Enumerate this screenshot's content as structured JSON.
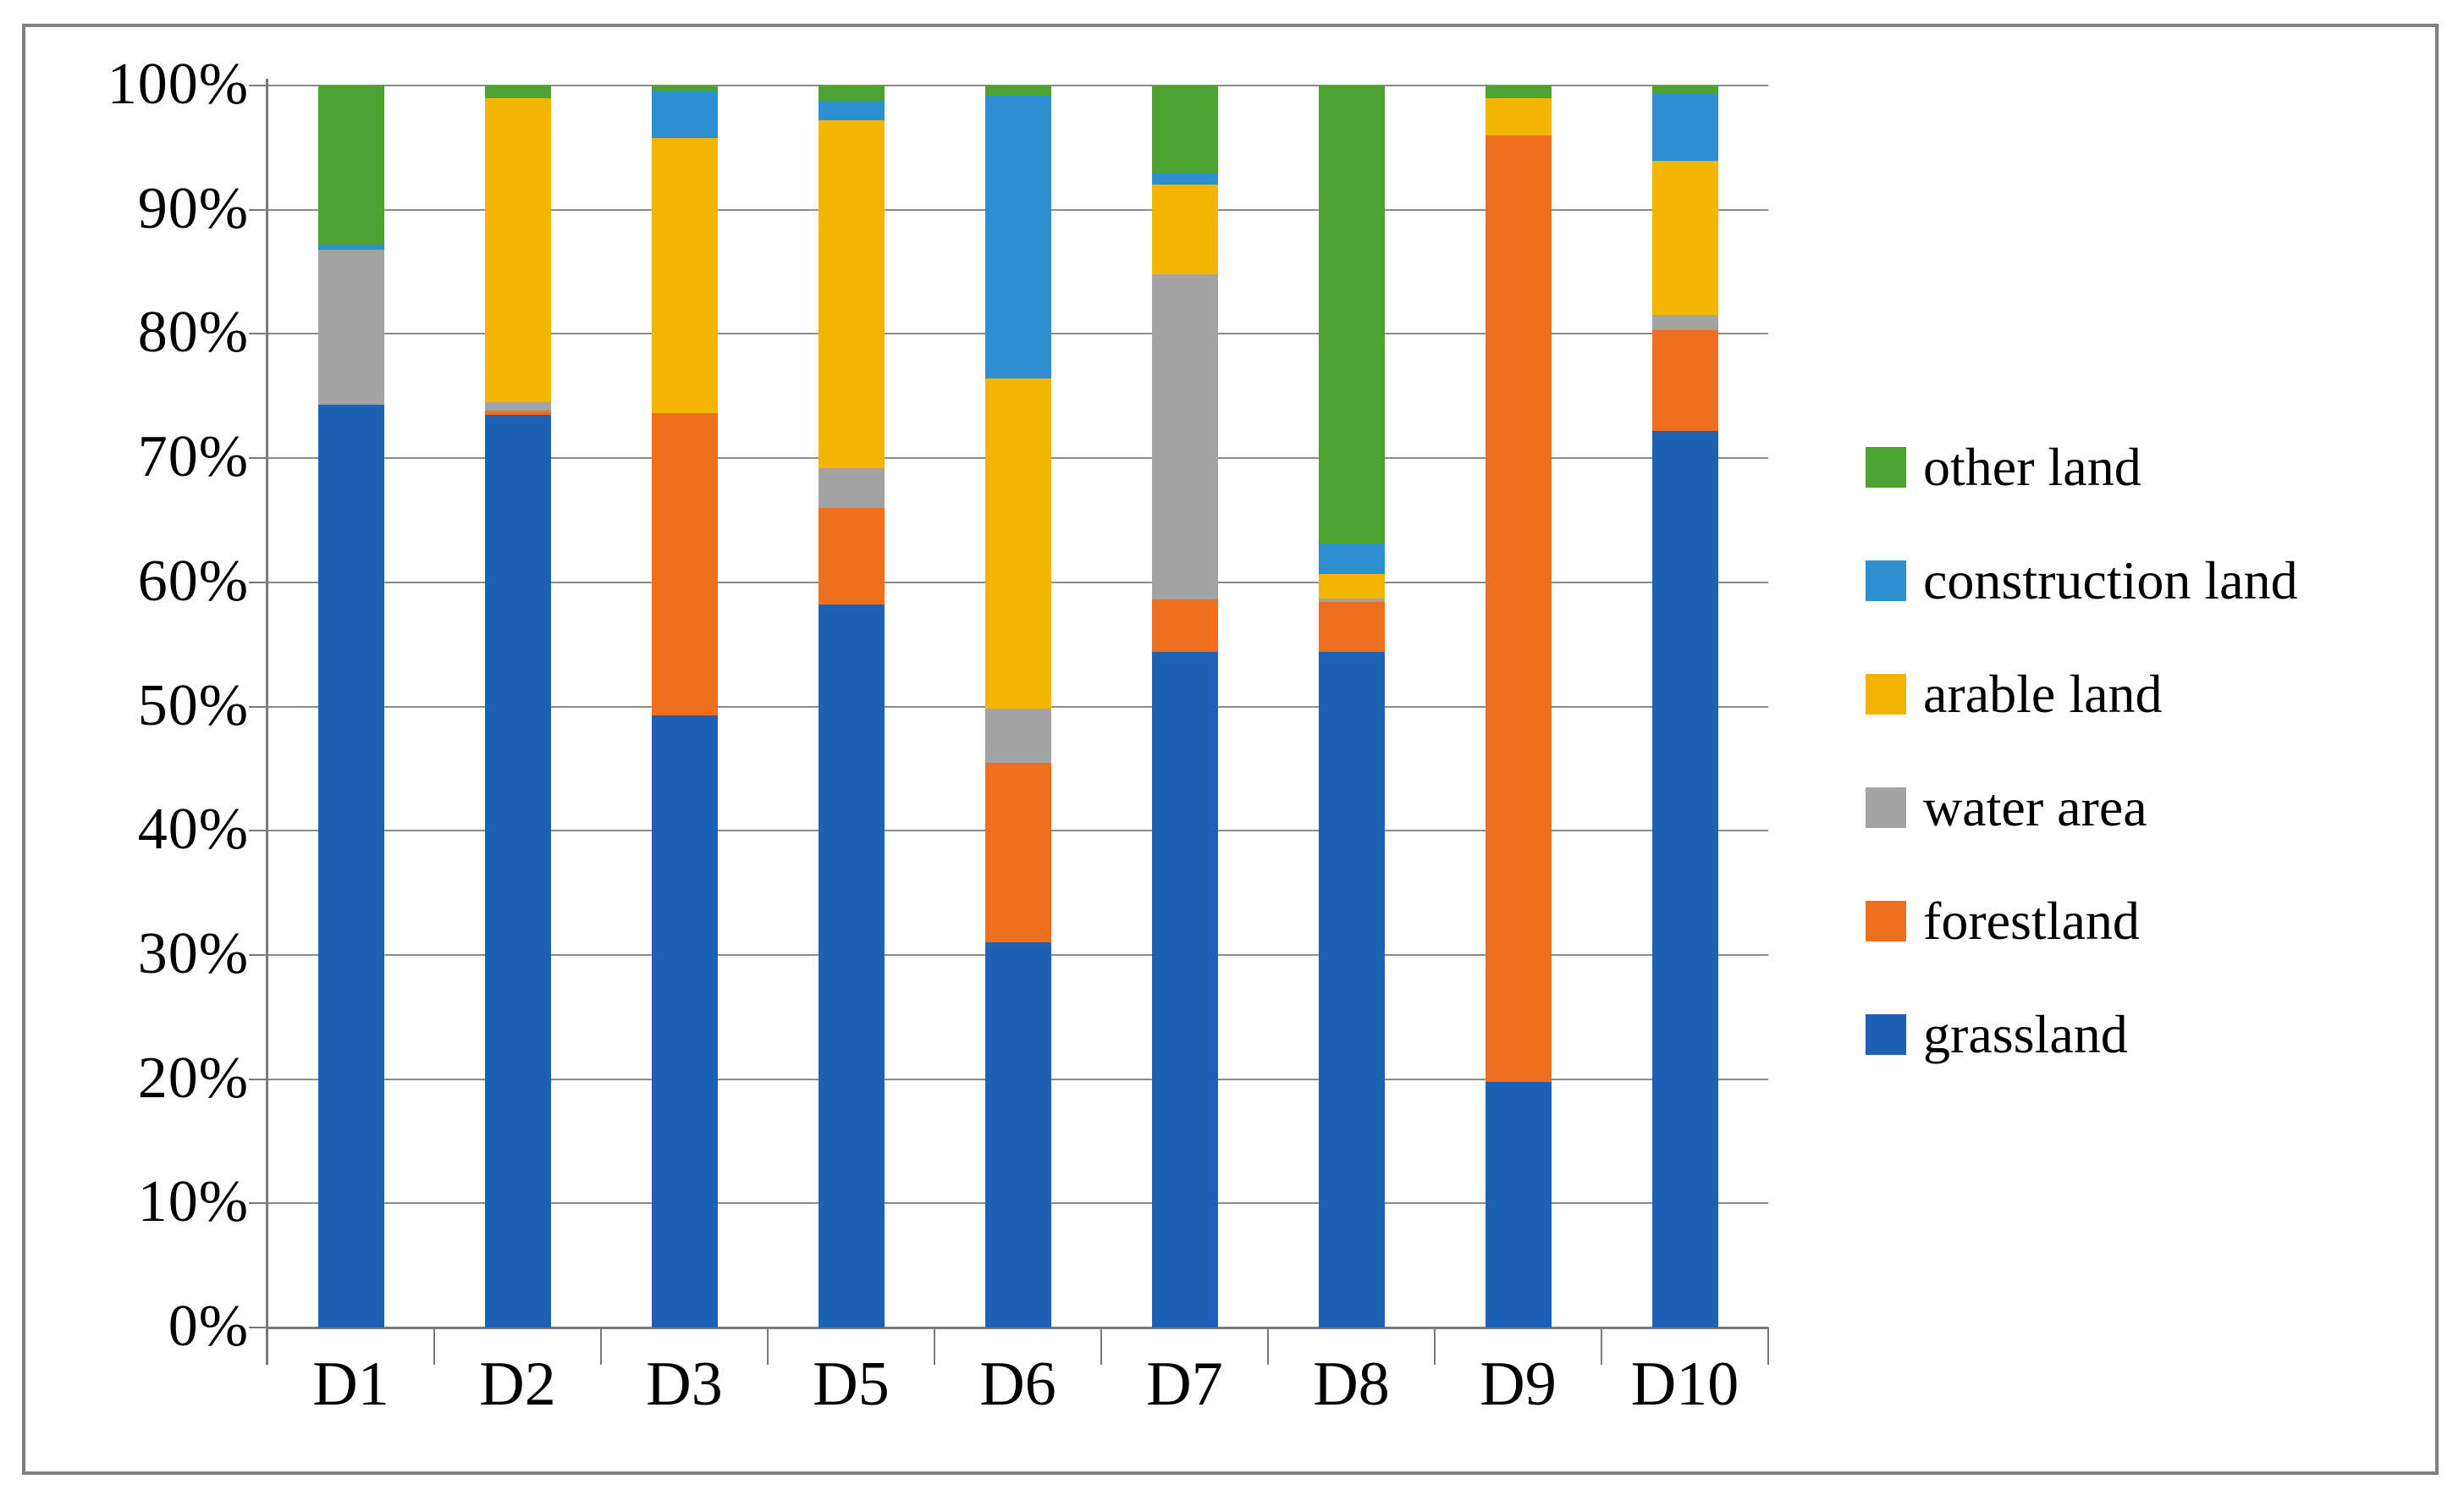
{
  "figure": {
    "background": "#ffffff",
    "border_color": "#808080",
    "gridline_color": "#8c8c8c",
    "axis_color": "#7a7a7a",
    "text_color": "#000000"
  },
  "chart_data": {
    "type": "bar",
    "subtype": "stacked-100-percent",
    "title": "",
    "xlabel": "",
    "ylabel": "",
    "ylim": [
      0,
      100
    ],
    "grid": true,
    "y_ticks": [
      "100%",
      "90%",
      "80%",
      "70%",
      "60%",
      "50%",
      "40%",
      "30%",
      "20%",
      "10%",
      "0%"
    ],
    "categories": [
      "D1",
      "D2",
      "D3",
      "D5",
      "D6",
      "D7",
      "D8",
      "D9",
      "D10"
    ],
    "series": [
      {
        "name": "grassland",
        "color": "#1E60B4",
        "values": [
          74.3,
          73.5,
          49.3,
          58.2,
          31.0,
          54.4,
          54.4,
          19.8,
          72.2
        ]
      },
      {
        "name": "forestland",
        "color": "#EE6F1E",
        "values": [
          0,
          0.3,
          24.3,
          7.8,
          14.5,
          4.2,
          4.0,
          76.2,
          8.1
        ]
      },
      {
        "name": "water area",
        "color": "#A3A3A3",
        "values": [
          12.5,
          0.7,
          0,
          3.2,
          4.3,
          26.2,
          0.3,
          0,
          1.2
        ]
      },
      {
        "name": "arable land",
        "color": "#F4B500",
        "values": [
          0,
          24.5,
          22.2,
          28.0,
          26.6,
          7.2,
          2.0,
          3.0,
          12.4
        ]
      },
      {
        "name": "construction land",
        "color": "#2D8FCE",
        "values": [
          0.4,
          0,
          3.8,
          1.6,
          22.8,
          1.0,
          2.4,
          0,
          5.4
        ]
      },
      {
        "name": "other land",
        "color": "#4DA32F",
        "values": [
          12.8,
          1.0,
          0.4,
          1.2,
          0.8,
          7.0,
          36.9,
          1.0,
          0.7
        ]
      }
    ],
    "legend_position": "right",
    "legend_order": [
      "other land",
      "construction land",
      "arable land",
      "water area",
      "forestland",
      "grassland"
    ]
  }
}
